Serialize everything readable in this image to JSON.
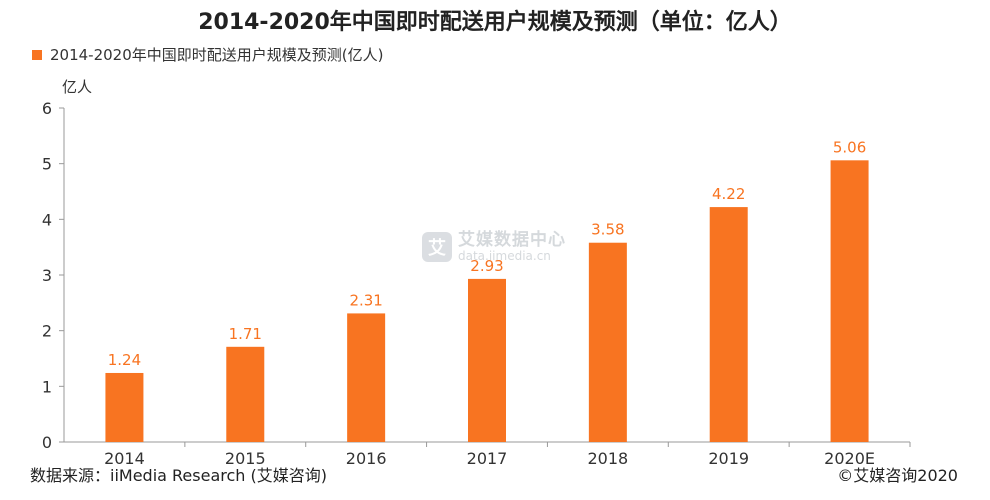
{
  "title": "2014-2020年中国即时配送用户规模及预测（单位：亿人）",
  "legend_label": "2014-2020年中国即时配送用户规模及预测(亿人)",
  "source": "数据来源：iiMedia Research (艾媒咨询)",
  "copyright": "©艾媒咨询2020",
  "watermark": {
    "logo": "艾",
    "main": "艾媒数据中心",
    "sub": "data.iimedia.cn"
  },
  "colors": {
    "bar": "#f87421",
    "label": "#f87421",
    "axis": "#999999",
    "text": "#333333"
  },
  "chart_data": {
    "type": "bar",
    "categories": [
      "2014",
      "2015",
      "2016",
      "2017",
      "2018",
      "2019",
      "2020E"
    ],
    "series": [
      {
        "name": "2014-2020年中国即时配送用户规模及预测(亿人)",
        "values": [
          1.24,
          1.71,
          2.31,
          2.93,
          3.58,
          4.22,
          5.06
        ]
      }
    ],
    "title": "2014-2020年中国即时配送用户规模及预测（单位：亿人）",
    "xlabel": "",
    "ylabel": "亿人",
    "ylim": [
      0,
      6
    ],
    "yticks": [
      0,
      1,
      2,
      3,
      4,
      5,
      6
    ],
    "grid": false,
    "legend": "top-left",
    "data_labels": [
      "1.24",
      "1.71",
      "2.31",
      "2.93",
      "3.58",
      "4.22",
      "5.06"
    ]
  }
}
